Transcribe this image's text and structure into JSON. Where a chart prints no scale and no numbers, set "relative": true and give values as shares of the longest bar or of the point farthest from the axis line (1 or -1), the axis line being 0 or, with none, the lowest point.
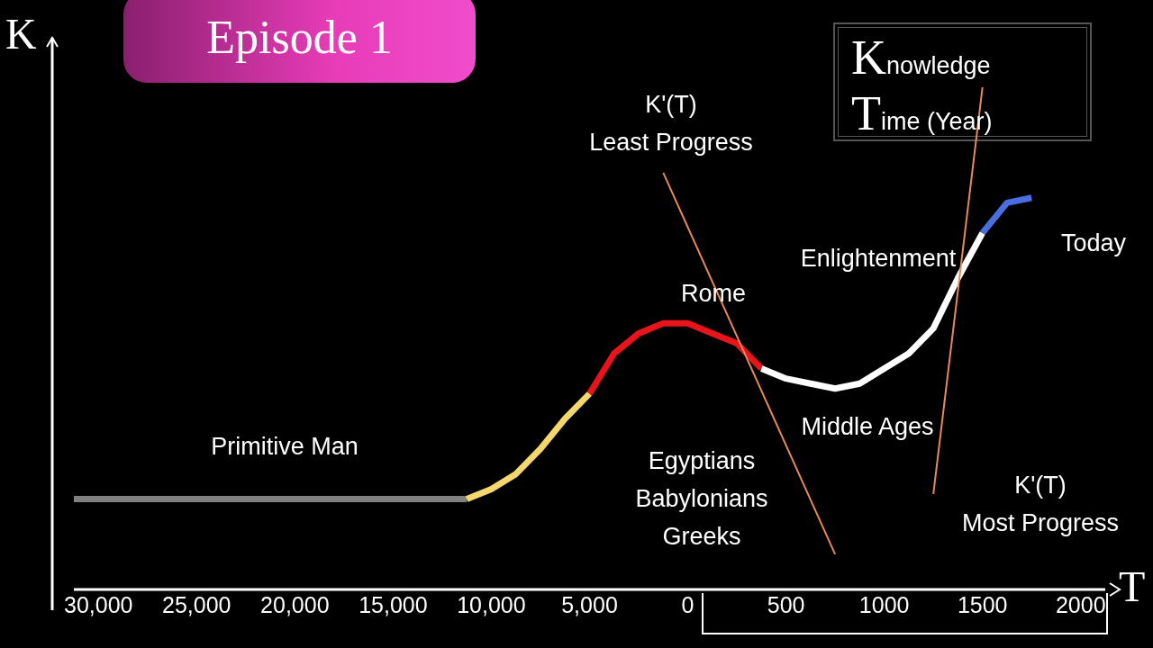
{
  "chart_data": {
    "type": "line",
    "title": "Episode 1",
    "xlabel": "T",
    "ylabel": "K",
    "relative": true,
    "categories": [
      null,
      "30,000",
      null,
      null,
      null,
      "25,000",
      null,
      null,
      null,
      "20,000",
      null,
      null,
      null,
      "15,000",
      null,
      null,
      null,
      "10,000",
      null,
      null,
      null,
      "5,000",
      null,
      null,
      null,
      "0",
      null,
      null,
      null,
      "500",
      null,
      null,
      null,
      "1000",
      null,
      null,
      null,
      "1500",
      null,
      null,
      null,
      "2000",
      null
    ],
    "series": [
      {
        "color": "#808080",
        "values": [
          0.18,
          0.18,
          0.18,
          0.18,
          0.18,
          0.18,
          0.18,
          0.18,
          0.18,
          0.18,
          0.18,
          0.18,
          0.18,
          0.18,
          0.18,
          0.18,
          0.18,
          null,
          null,
          null,
          null,
          null,
          null,
          null,
          null,
          null,
          null,
          null,
          null,
          null,
          null,
          null,
          null,
          null,
          null,
          null,
          null,
          null,
          null,
          null,
          null,
          null,
          null
        ]
      },
      {
        "color": "#f5d76e",
        "values": [
          null,
          null,
          null,
          null,
          null,
          null,
          null,
          null,
          null,
          null,
          null,
          null,
          null,
          null,
          null,
          null,
          0.18,
          0.2,
          0.23,
          0.28,
          0.34,
          0.39,
          null,
          null,
          null,
          null,
          null,
          null,
          null,
          null,
          null,
          null,
          null,
          null,
          null,
          null,
          null,
          null,
          null,
          null,
          null,
          null,
          null
        ]
      },
      {
        "color": "#e8141b",
        "values": [
          null,
          null,
          null,
          null,
          null,
          null,
          null,
          null,
          null,
          null,
          null,
          null,
          null,
          null,
          null,
          null,
          null,
          null,
          null,
          null,
          null,
          0.39,
          0.47,
          0.51,
          0.53,
          0.53,
          0.51,
          0.49,
          0.44,
          null,
          null,
          null,
          null,
          null,
          null,
          null,
          null,
          null,
          null,
          null,
          null,
          null,
          null
        ]
      },
      {
        "color": "#ffffff",
        "values": [
          null,
          null,
          null,
          null,
          null,
          null,
          null,
          null,
          null,
          null,
          null,
          null,
          null,
          null,
          null,
          null,
          null,
          null,
          null,
          null,
          null,
          null,
          null,
          null,
          null,
          null,
          null,
          null,
          0.44,
          0.42,
          0.41,
          0.4,
          0.41,
          0.44,
          0.47,
          0.52,
          0.62,
          0.71,
          null,
          null,
          null,
          null,
          null
        ]
      },
      {
        "color": "#4a6ee0",
        "values": [
          null,
          null,
          null,
          null,
          null,
          null,
          null,
          null,
          null,
          null,
          null,
          null,
          null,
          null,
          null,
          null,
          null,
          null,
          null,
          null,
          null,
          null,
          null,
          null,
          null,
          null,
          null,
          null,
          null,
          null,
          null,
          null,
          null,
          null,
          null,
          null,
          null,
          0.71,
          0.77,
          0.78,
          null,
          null,
          null
        ]
      },
      {
        "color": "#e8895a",
        "values": [
          null,
          null,
          null,
          null,
          null,
          null,
          null,
          null,
          null,
          null,
          null,
          null,
          null,
          null,
          null,
          null,
          null,
          null,
          null,
          null,
          null,
          null,
          null,
          null,
          0.83,
          null,
          null,
          null,
          null,
          null,
          null,
          0.07,
          null,
          null,
          null,
          null,
          null,
          null,
          null,
          null,
          null,
          null,
          null
        ]
      },
      {
        "color": "#e8895a",
        "values": [
          null,
          null,
          null,
          null,
          null,
          null,
          null,
          null,
          null,
          null,
          null,
          null,
          null,
          null,
          null,
          null,
          null,
          null,
          null,
          null,
          null,
          null,
          null,
          null,
          null,
          null,
          null,
          null,
          null,
          null,
          null,
          null,
          null,
          null,
          null,
          0.19,
          null,
          1.0,
          null,
          null,
          null,
          null,
          null
        ]
      }
    ],
    "annotations": [
      "Knowledge",
      "Time (Year)",
      "K'(T)\nLeast Progress",
      "Rome",
      "Enlightenment",
      "Today",
      "Middle Ages",
      "Primitive Man",
      "Egyptians\nBabylonians\nGreeks",
      "K'(T)\nMost Progress"
    ]
  }
}
